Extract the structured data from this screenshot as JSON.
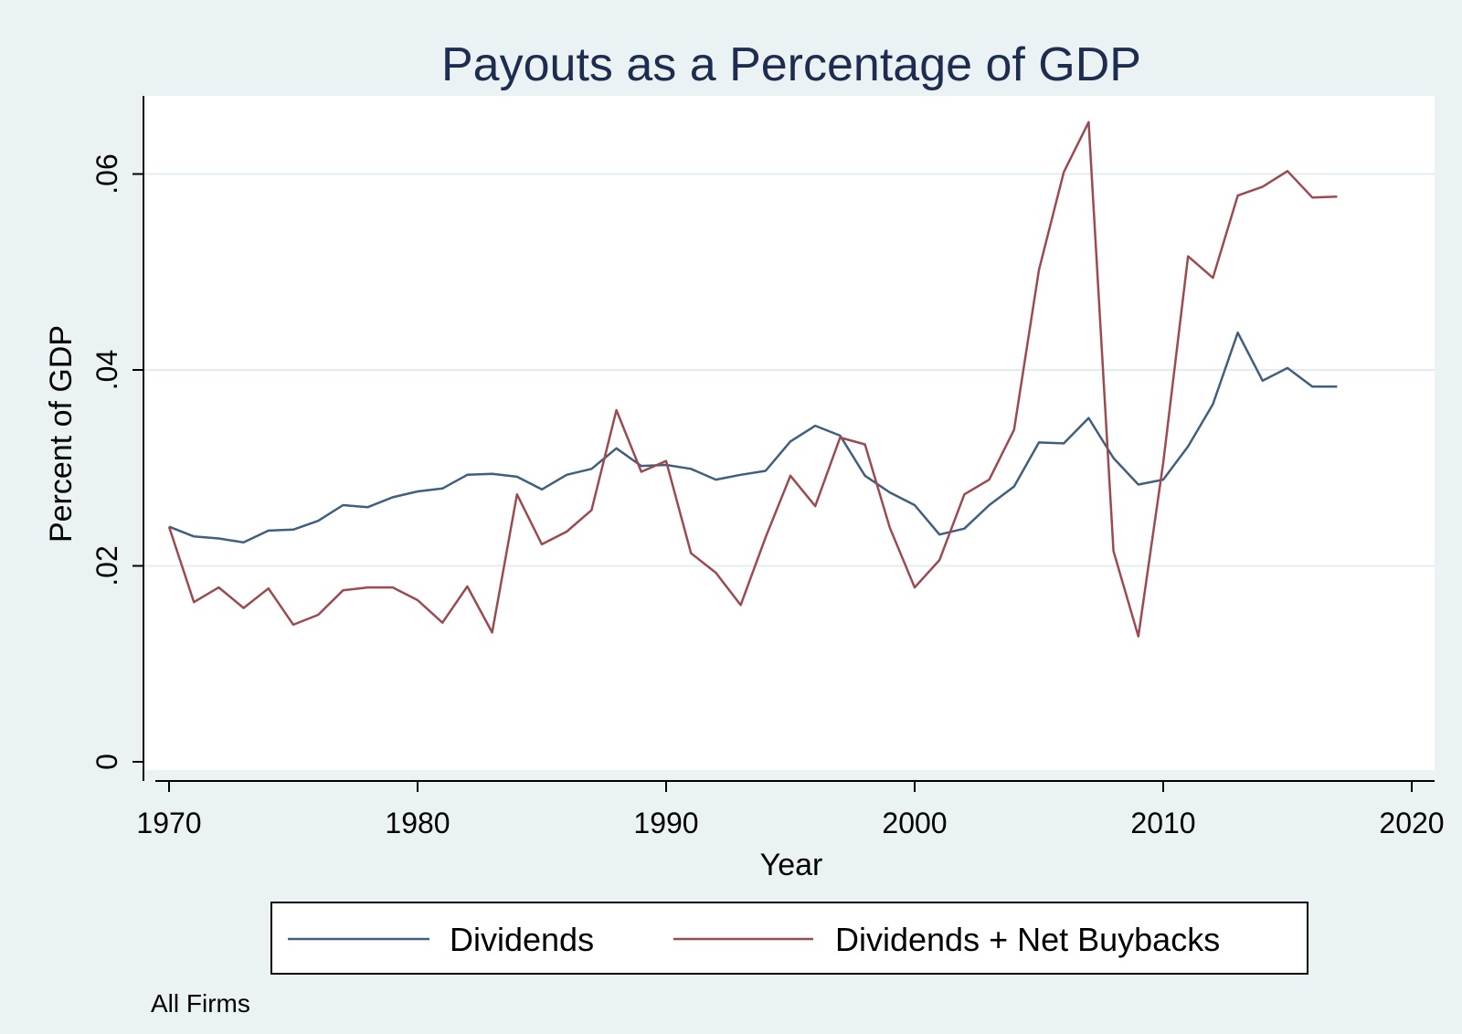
{
  "chart_data": {
    "type": "line",
    "title": "Payouts as a Percentage of GDP",
    "xlabel": "Year",
    "ylabel": "Percent of GDP",
    "xlim": [
      1970,
      2020
    ],
    "ylim": [
      0,
      0.065
    ],
    "x_ticks": [
      1970,
      1980,
      1990,
      2000,
      2010,
      2020
    ],
    "x_tick_labels": [
      "1970",
      "1980",
      "1990",
      "2000",
      "2010",
      "2020"
    ],
    "y_ticks": [
      0,
      0.02,
      0.04,
      0.06
    ],
    "y_tick_labels": [
      "0",
      ".02",
      ".04",
      ".06"
    ],
    "grid": true,
    "legend_position": "bottom",
    "note": "All Firms",
    "x": [
      1970,
      1971,
      1972,
      1973,
      1974,
      1975,
      1976,
      1977,
      1978,
      1979,
      1980,
      1981,
      1982,
      1983,
      1984,
      1985,
      1986,
      1987,
      1988,
      1989,
      1990,
      1991,
      1992,
      1993,
      1994,
      1995,
      1996,
      1997,
      1998,
      1999,
      2000,
      2001,
      2002,
      2003,
      2004,
      2005,
      2006,
      2007,
      2008,
      2009,
      2010,
      2011,
      2012,
      2013,
      2014,
      2015,
      2016,
      2017
    ],
    "series": [
      {
        "name": "Dividends",
        "color": "#3e5f7e",
        "values": [
          0.024,
          0.023,
          0.0228,
          0.0224,
          0.0236,
          0.0237,
          0.0246,
          0.0262,
          0.026,
          0.027,
          0.0276,
          0.0279,
          0.0293,
          0.0294,
          0.0291,
          0.0278,
          0.0293,
          0.0299,
          0.032,
          0.0302,
          0.0303,
          0.0299,
          0.0288,
          0.0293,
          0.0297,
          0.0327,
          0.0343,
          0.0333,
          0.0292,
          0.0275,
          0.0262,
          0.0232,
          0.0238,
          0.0262,
          0.0281,
          0.0326,
          0.0325,
          0.0351,
          0.031,
          0.0283,
          0.0288,
          0.0322,
          0.0365,
          0.0438,
          0.0389,
          0.0402,
          0.0383,
          0.0383
        ]
      },
      {
        "name": "Dividends + Net Buybacks",
        "color": "#9c4a50",
        "values": [
          0.024,
          0.0163,
          0.0178,
          0.0157,
          0.0177,
          0.014,
          0.015,
          0.0175,
          0.0178,
          0.0178,
          0.0165,
          0.0142,
          0.0179,
          0.0132,
          0.0273,
          0.0222,
          0.0235,
          0.0257,
          0.0359,
          0.0296,
          0.0307,
          0.0213,
          0.0193,
          0.016,
          0.0229,
          0.0292,
          0.0261,
          0.0331,
          0.0324,
          0.0239,
          0.0178,
          0.0206,
          0.0273,
          0.0288,
          0.0339,
          0.0502,
          0.0602,
          0.0653,
          0.0215,
          0.0128,
          0.0305,
          0.0516,
          0.0494,
          0.0578,
          0.0587,
          0.0603,
          0.0576,
          0.0577
        ]
      }
    ]
  }
}
